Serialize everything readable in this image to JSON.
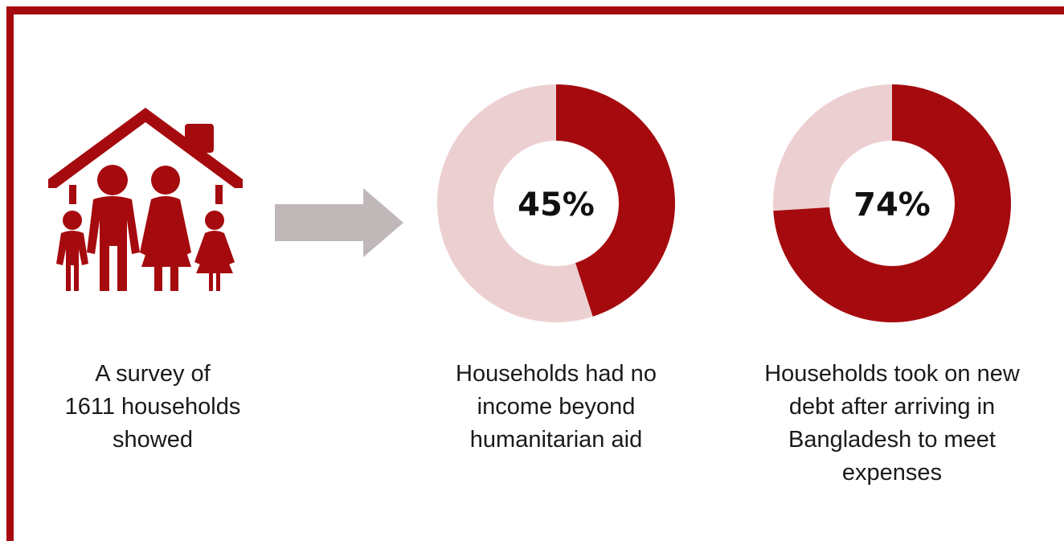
{
  "colors": {
    "accent": "#a50a0e",
    "track": "#ecd0d1",
    "arrow": "#c0b8b8"
  },
  "icons": {
    "family": "family-house-icon",
    "arrow": "arrow-right-icon"
  },
  "survey": {
    "lines": [
      "A survey of",
      "1611 households",
      "showed"
    ]
  },
  "chart_data": [
    {
      "type": "pie",
      "style": "donut",
      "value": 45,
      "label": "45%",
      "caption": [
        "Households had no",
        "income beyond",
        "humanitarian aid"
      ]
    },
    {
      "type": "pie",
      "style": "donut",
      "value": 74,
      "label": "74%",
      "caption": [
        "Households took on new",
        "debt after arriving in",
        "Bangladesh to meet",
        "expenses"
      ]
    }
  ]
}
